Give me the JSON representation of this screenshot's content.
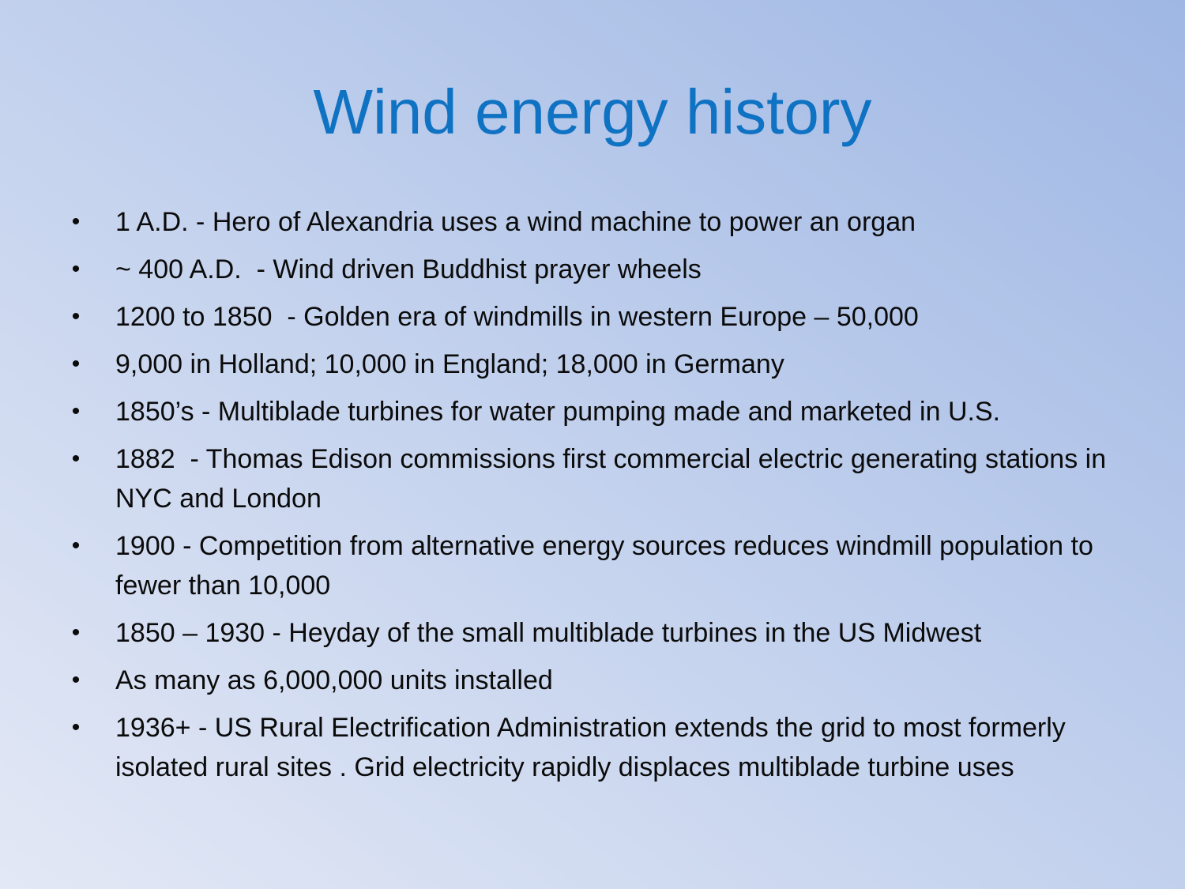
{
  "slide": {
    "title": "Wind energy history",
    "bullet_symbol": "•",
    "bullets": [
      "1 A.D. - Hero of Alexandria uses a wind machine to power an organ",
      "~ 400 A.D.  - Wind driven Buddhist prayer wheels",
      "1200 to 1850  - Golden era of windmills in western Europe – 50,000",
      "9,000 in Holland; 10,000 in England; 18,000 in Germany",
      "1850’s - Multiblade turbines for water pumping made and marketed in U.S.",
      "1882  - Thomas Edison commissions first commercial electric generating stations in NYC and London",
      "1900 - Competition from alternative energy sources reduces windmill population to fewer than 10,000",
      "1850 – 1930 - Heyday of the small multiblade turbines in the US Midwest",
      "As many as 6,000,000 units installed",
      "1936+ - US Rural Electrification Administration extends the grid to most formerly isolated rural sites . Grid electricity rapidly displaces multiblade turbine uses"
    ]
  }
}
